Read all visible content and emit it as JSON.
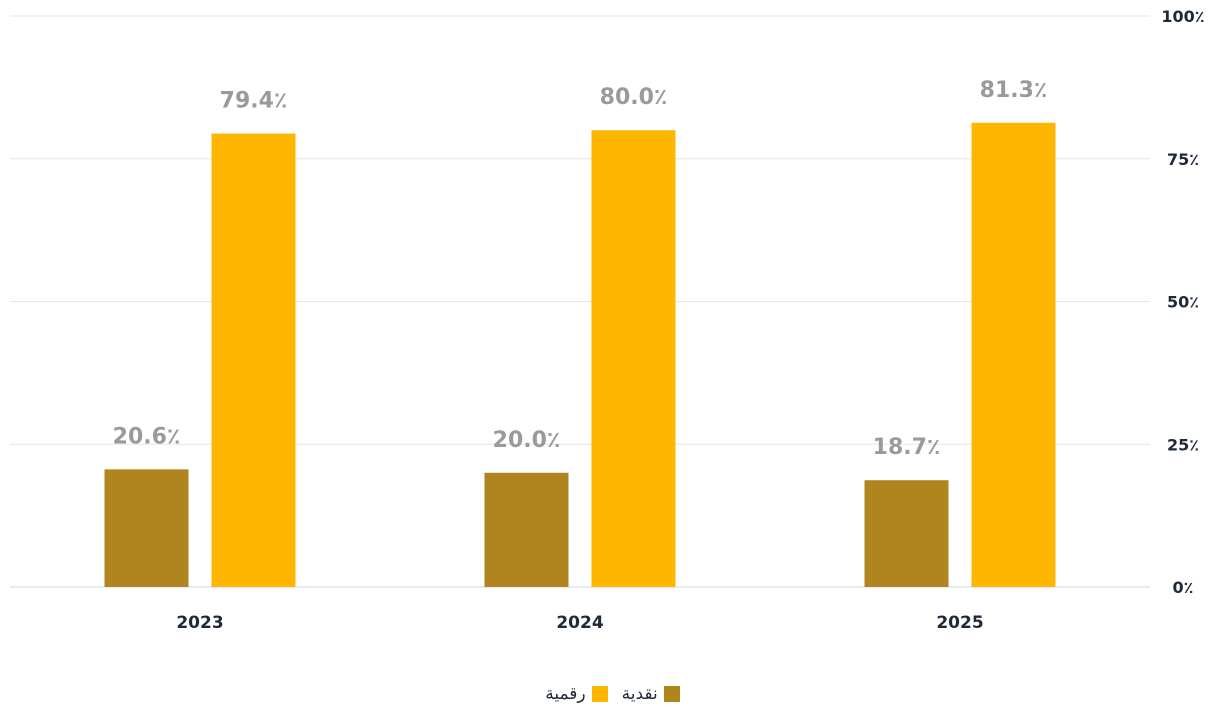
{
  "chart_data": {
    "type": "bar",
    "categories": [
      "2023",
      "2024",
      "2025"
    ],
    "series": [
      {
        "name": "نقدية",
        "values": [
          20.6,
          20.0,
          18.7
        ],
        "color": "#b08520",
        "labels": [
          "20.6٪",
          "20.0٪",
          "18.7٪"
        ]
      },
      {
        "name": "رقمية",
        "values": [
          79.4,
          80.0,
          81.3
        ],
        "color": "#ffb600",
        "labels": [
          "79.4٪",
          "80.0٪",
          "81.3٪"
        ]
      }
    ],
    "y_ticks": [
      0,
      25,
      50,
      75,
      100
    ],
    "y_tick_labels": [
      "0٪",
      "25٪",
      "50٪",
      "75٪",
      "100٪"
    ],
    "ylim": [
      0,
      100
    ],
    "y_axis_side": "right",
    "grid": true,
    "legend_position": "bottom-center",
    "title": "",
    "xlabel": "",
    "ylabel": ""
  }
}
